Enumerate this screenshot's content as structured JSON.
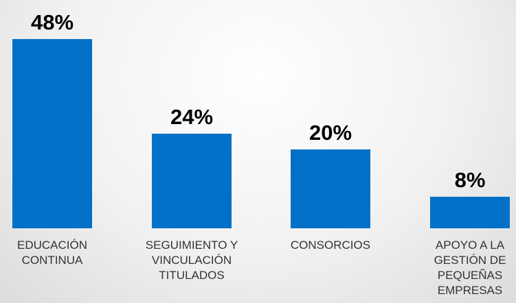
{
  "chart_data": {
    "type": "bar",
    "categories": [
      "EDUCACIÓN CONTINUA",
      "SEGUIMIENTO Y VINCULACIÓN TITULADOS",
      "CONSORCIOS",
      "APOYO A LA GESTIÓN DE PEQUEÑAS EMPRESAS"
    ],
    "values": [
      48,
      24,
      20,
      8
    ],
    "value_labels": [
      "48%",
      "24%",
      "20%",
      "8%"
    ],
    "color": "#0070c8"
  }
}
